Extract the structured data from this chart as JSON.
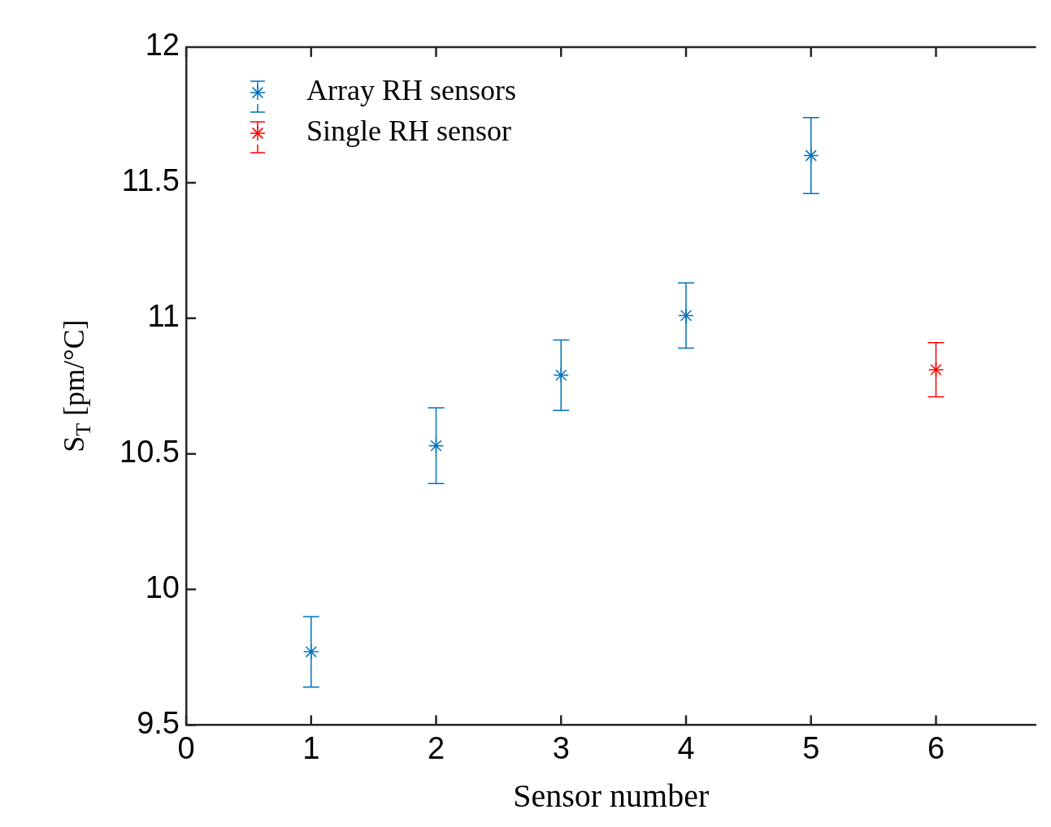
{
  "chart_data": {
    "type": "scatter",
    "xlabel": "Sensor number",
    "ylabel": "S$_{T}$ [pm/°C]",
    "marker": "cross",
    "grid": false,
    "legend": "top left",
    "xlim": [
      0,
      6.8
    ],
    "xticks": [
      0,
      1,
      2,
      3,
      4,
      5,
      6
    ],
    "ylim": [
      9.5,
      12
    ],
    "yticks": [
      9.5,
      10,
      10.5,
      11,
      11.5,
      12
    ],
    "series": [
      {
        "name": "Array RH sensors",
        "color": "#0072bd",
        "x": [
          1,
          2,
          3,
          4,
          5
        ],
        "values": [
          9.77,
          10.53,
          10.79,
          11.01,
          11.6
        ],
        "errors": [
          0.13,
          0.14,
          0.13,
          0.12,
          0.14
        ]
      },
      {
        "name": "Single RH sensor",
        "color": "#ff0000",
        "x": [
          6
        ],
        "values": [
          10.81
        ],
        "errors": [
          0.1
        ]
      }
    ]
  }
}
